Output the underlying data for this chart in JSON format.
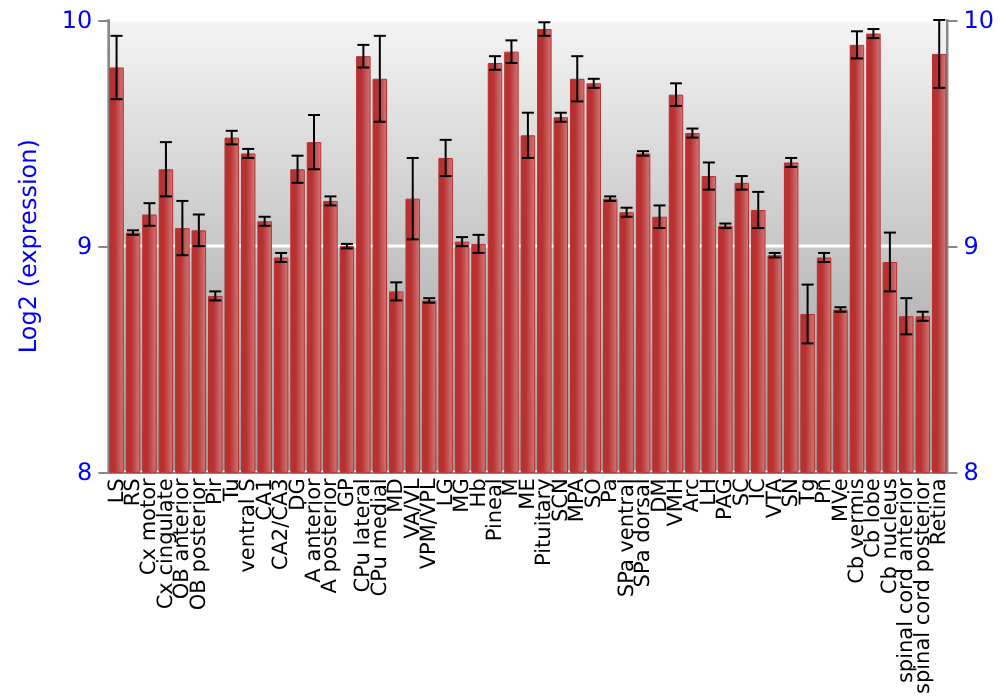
{
  "chart_data": {
    "type": "bar",
    "ylabel": "Log2 (expression)",
    "categories": [
      "LS",
      "RS",
      "Cx motor",
      "Cx cingulate",
      "OB anterior",
      "OB posterior",
      "Pir",
      "Tu",
      "ventral S",
      "CA1",
      "CA2/CA3",
      "DG",
      "A anterior",
      "A posterior",
      "GP",
      "CPu lateral",
      "CPu medial",
      "MD",
      "VA/VL",
      "VPM/VPL",
      "LG",
      "MG",
      "Hb",
      "Pineal",
      "M",
      "ME",
      "Pituitary",
      "SCN",
      "MPA",
      "SO",
      "Pa",
      "SPa ventral",
      "SPa dorsal",
      "DM",
      "VMH",
      "Arc",
      "LH",
      "PAG",
      "SC",
      "IC",
      "VTA",
      "SN",
      "Tg",
      "Pn",
      "MVe",
      "Cb vermis",
      "Cb lobe",
      "Cb nucleus",
      "spinal cord anterior",
      "spinal cord posterior",
      "Retina"
    ],
    "series": [
      {
        "color": "#b83030",
        "values": [
          9.79,
          9.06,
          9.14,
          9.34,
          9.08,
          9.07,
          8.78,
          9.48,
          9.41,
          9.11,
          8.95,
          9.34,
          9.46,
          9.2,
          9.0,
          9.84,
          9.74,
          8.8,
          9.21,
          8.76,
          9.39,
          9.02,
          9.01,
          9.81,
          9.86,
          9.49,
          9.96,
          9.57,
          9.74,
          9.72,
          9.21,
          9.15,
          9.41,
          9.13,
          9.67,
          9.5,
          9.31,
          9.09,
          9.28,
          9.16,
          8.96,
          9.37,
          8.7,
          8.95,
          8.72,
          9.89,
          9.94,
          8.93,
          8.69,
          8.69,
          9.85
        ],
        "errors": [
          0.14,
          0.01,
          0.05,
          0.12,
          0.12,
          0.07,
          0.02,
          0.03,
          0.02,
          0.02,
          0.02,
          0.06,
          0.12,
          0.02,
          0.01,
          0.05,
          0.19,
          0.04,
          0.18,
          0.01,
          0.08,
          0.02,
          0.04,
          0.03,
          0.05,
          0.1,
          0.03,
          0.02,
          0.1,
          0.02,
          0.01,
          0.02,
          0.01,
          0.05,
          0.05,
          0.02,
          0.06,
          0.01,
          0.03,
          0.08,
          0.01,
          0.02,
          0.13,
          0.02,
          0.01,
          0.06,
          0.02,
          0.13,
          0.08,
          0.02,
          0.15
        ]
      }
    ],
    "ylim": [
      8,
      10
    ],
    "yticks": [
      8,
      9,
      10
    ],
    "y2lim": [
      8,
      10
    ],
    "y2ticks": [
      8,
      9,
      10
    ],
    "grid": "y"
  }
}
